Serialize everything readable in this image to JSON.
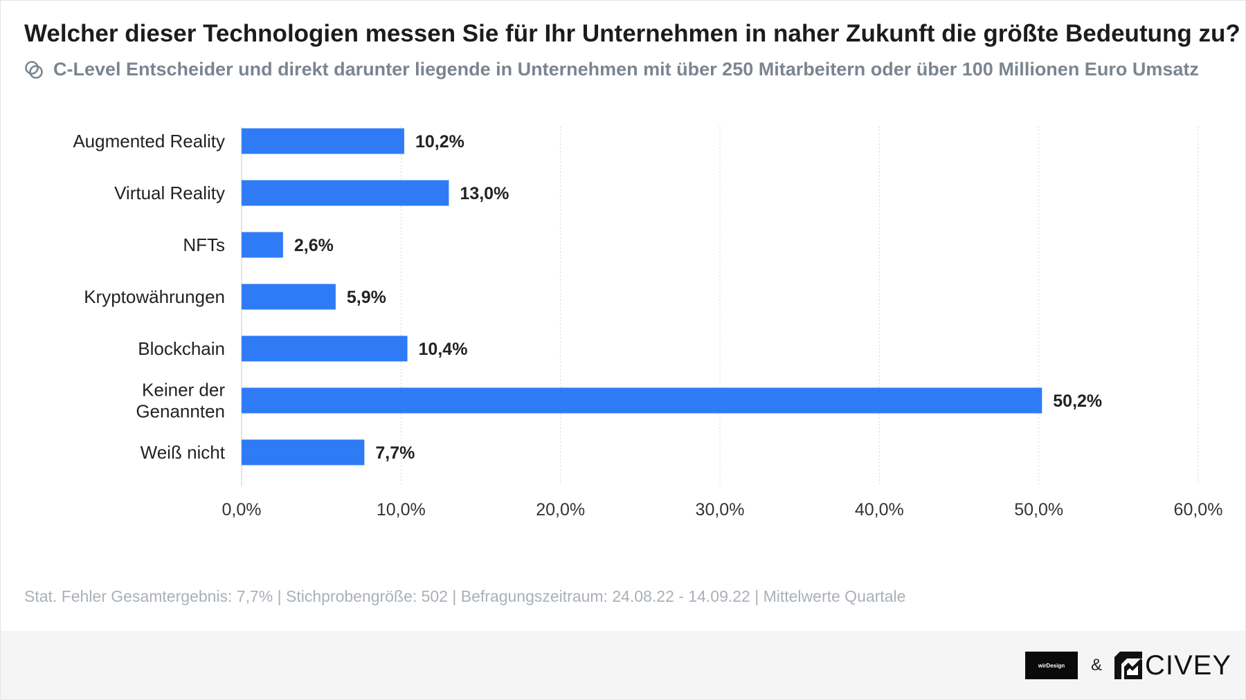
{
  "title": "Welcher dieser Technologien messen Sie für Ihr Unternehmen in naher Zukunft die größte Bedeutung zu?",
  "subtitle": "C-Level Entscheider und direkt darunter liegende in Unternehmen mit über 250 Mitarbeitern oder über 100 Millionen Euro Umsatz",
  "footnote": "Stat. Fehler Gesamtergebnis: 7,7% | Stichprobengröße: 502 | Befragungszeitraum: 24.08.22 - 14.09.22 | Mittelwerte Quartale",
  "footer": {
    "logo1": "wirDesign",
    "separator": "&",
    "logo2": "CIVEY"
  },
  "colors": {
    "bar": "#2f7bf6",
    "grid": "#d6d6d6",
    "text": "#1c1c1c"
  },
  "chart_data": {
    "type": "bar",
    "orientation": "horizontal",
    "categories": [
      [
        "Augmented Reality"
      ],
      [
        "Virtual Reality"
      ],
      [
        "NFTs"
      ],
      [
        "Kryptowährungen"
      ],
      [
        "Blockchain"
      ],
      [
        "Keiner der",
        "Genannten"
      ],
      [
        "Weiß nicht"
      ]
    ],
    "values": [
      10.2,
      13.0,
      2.6,
      5.9,
      10.4,
      50.2,
      7.7
    ],
    "value_labels": [
      "10,2%",
      "13,0%",
      "2,6%",
      "5,9%",
      "10,4%",
      "50,2%",
      "7,7%"
    ],
    "xlim": [
      0,
      60
    ],
    "xticks": [
      0,
      10,
      20,
      30,
      40,
      50,
      60
    ],
    "xtick_labels": [
      "0,0%",
      "10,0%",
      "20,0%",
      "30,0%",
      "40,0%",
      "50,0%",
      "60,0%"
    ],
    "grid": true,
    "unit": "%"
  }
}
